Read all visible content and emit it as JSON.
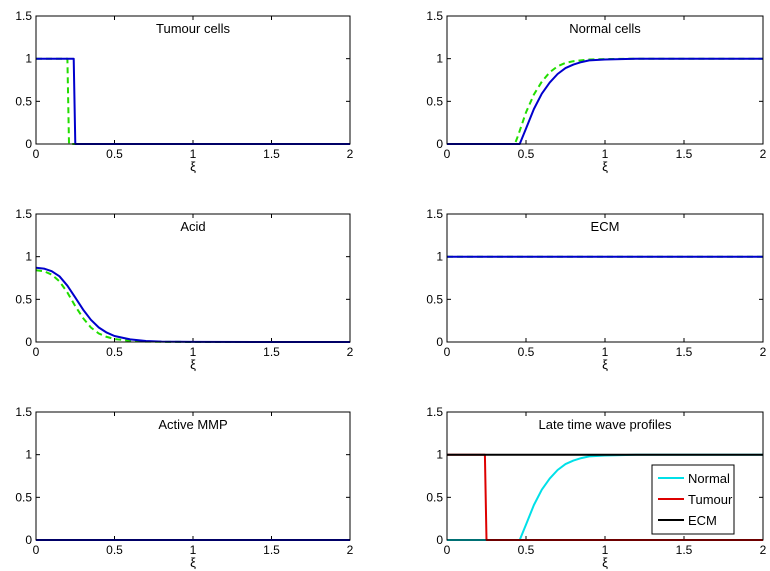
{
  "chart_data": [
    {
      "type": "line",
      "title": "Tumour cells",
      "xlabel": "ξ",
      "xlim": [
        0,
        2
      ],
      "ylim": [
        0,
        1.5
      ],
      "xticks": [
        "0",
        "0.5",
        "1",
        "1.5",
        "2"
      ],
      "yticks": [
        "0",
        "0.5",
        "1",
        "1.5"
      ],
      "series": [
        {
          "style": "dashed",
          "color": "#22dd00",
          "x": [
            0,
            0.2,
            0.2,
            0.21,
            2
          ],
          "y": [
            1,
            1,
            1,
            0,
            0
          ]
        },
        {
          "style": "solid",
          "color": "#0000cc",
          "x": [
            0,
            0.24,
            0.24,
            0.25,
            2
          ],
          "y": [
            1,
            1,
            1,
            0,
            0
          ]
        }
      ]
    },
    {
      "type": "line",
      "title": "Normal cells",
      "xlabel": "ξ",
      "xlim": [
        0,
        2
      ],
      "ylim": [
        0,
        1.5
      ],
      "xticks": [
        "0",
        "0.5",
        "1",
        "1.5",
        "2"
      ],
      "yticks": [
        "0",
        "0.5",
        "1",
        "1.5"
      ],
      "series": [
        {
          "style": "dashed",
          "color": "#22dd00",
          "x": [
            0,
            0.43,
            0.45,
            0.5,
            0.55,
            0.6,
            0.65,
            0.7,
            0.75,
            0.8,
            0.9,
            1.0,
            1.2,
            2
          ],
          "y": [
            0,
            0,
            0.1,
            0.37,
            0.58,
            0.73,
            0.84,
            0.91,
            0.95,
            0.97,
            0.99,
            0.995,
            1,
            1
          ]
        },
        {
          "style": "solid",
          "color": "#0000cc",
          "x": [
            0,
            0.46,
            0.5,
            0.55,
            0.6,
            0.65,
            0.7,
            0.75,
            0.8,
            0.85,
            0.9,
            1.0,
            1.2,
            2
          ],
          "y": [
            0,
            0,
            0.18,
            0.41,
            0.59,
            0.72,
            0.82,
            0.89,
            0.93,
            0.96,
            0.98,
            0.99,
            1,
            1
          ]
        }
      ]
    },
    {
      "type": "line",
      "title": "Acid",
      "xlabel": "ξ",
      "xlim": [
        0,
        2
      ],
      "ylim": [
        0,
        1.5
      ],
      "xticks": [
        "0",
        "0.5",
        "1",
        "1.5",
        "2"
      ],
      "yticks": [
        "0",
        "0.5",
        "1",
        "1.5"
      ],
      "series": [
        {
          "style": "dashed",
          "color": "#22dd00",
          "x": [
            0,
            0.05,
            0.1,
            0.15,
            0.2,
            0.25,
            0.3,
            0.35,
            0.4,
            0.45,
            0.5,
            0.6,
            0.7,
            0.8,
            1.0,
            2
          ],
          "y": [
            0.84,
            0.83,
            0.79,
            0.71,
            0.58,
            0.42,
            0.28,
            0.17,
            0.1,
            0.06,
            0.035,
            0.013,
            0.005,
            0.002,
            0,
            0
          ]
        },
        {
          "style": "solid",
          "color": "#0000cc",
          "x": [
            0,
            0.05,
            0.1,
            0.15,
            0.2,
            0.25,
            0.3,
            0.35,
            0.4,
            0.45,
            0.5,
            0.6,
            0.7,
            0.8,
            1.0,
            2
          ],
          "y": [
            0.87,
            0.86,
            0.83,
            0.77,
            0.66,
            0.52,
            0.38,
            0.26,
            0.17,
            0.11,
            0.07,
            0.03,
            0.012,
            0.005,
            0.001,
            0
          ]
        }
      ]
    },
    {
      "type": "line",
      "title": "ECM",
      "xlabel": "ξ",
      "xlim": [
        0,
        2
      ],
      "ylim": [
        0,
        1.5
      ],
      "xticks": [
        "0",
        "0.5",
        "1",
        "1.5",
        "2"
      ],
      "yticks": [
        "0",
        "0.5",
        "1",
        "1.5"
      ],
      "series": [
        {
          "style": "dashed",
          "color": "#22dd00",
          "x": [
            0,
            2
          ],
          "y": [
            1,
            1
          ]
        },
        {
          "style": "solid",
          "color": "#0000cc",
          "x": [
            0,
            2
          ],
          "y": [
            1,
            1
          ]
        }
      ]
    },
    {
      "type": "line",
      "title": "Active MMP",
      "xlabel": "ξ",
      "xlim": [
        0,
        2
      ],
      "ylim": [
        0,
        1.5
      ],
      "xticks": [
        "0",
        "0.5",
        "1",
        "1.5",
        "2"
      ],
      "yticks": [
        "0",
        "0.5",
        "1",
        "1.5"
      ],
      "series": [
        {
          "style": "dashed",
          "color": "#22dd00",
          "x": [
            0,
            2
          ],
          "y": [
            0,
            0
          ]
        },
        {
          "style": "solid",
          "color": "#0000cc",
          "x": [
            0,
            2
          ],
          "y": [
            0,
            0
          ]
        }
      ]
    },
    {
      "type": "line",
      "title": "Late time wave profiles",
      "xlabel": "ξ",
      "xlim": [
        0,
        2
      ],
      "ylim": [
        0,
        1.5
      ],
      "xticks": [
        "0",
        "0.5",
        "1",
        "1.5",
        "2"
      ],
      "yticks": [
        "0",
        "0.5",
        "1",
        "1.5"
      ],
      "legend_position": "bottom-right",
      "series": [
        {
          "name": "Normal",
          "style": "solid",
          "color": "#00e0e8",
          "x": [
            0,
            0.46,
            0.5,
            0.55,
            0.6,
            0.65,
            0.7,
            0.75,
            0.8,
            0.85,
            0.9,
            1.0,
            1.2,
            2
          ],
          "y": [
            0,
            0,
            0.18,
            0.41,
            0.59,
            0.72,
            0.82,
            0.89,
            0.93,
            0.96,
            0.98,
            0.99,
            1,
            1
          ]
        },
        {
          "name": "Tumour",
          "style": "solid",
          "color": "#dd0000",
          "x": [
            0,
            0.24,
            0.24,
            0.25,
            2
          ],
          "y": [
            1,
            1,
            1,
            0,
            0
          ]
        },
        {
          "name": "ECM",
          "style": "solid",
          "color": "#000000",
          "x": [
            0,
            2
          ],
          "y": [
            1,
            1
          ]
        }
      ]
    }
  ]
}
